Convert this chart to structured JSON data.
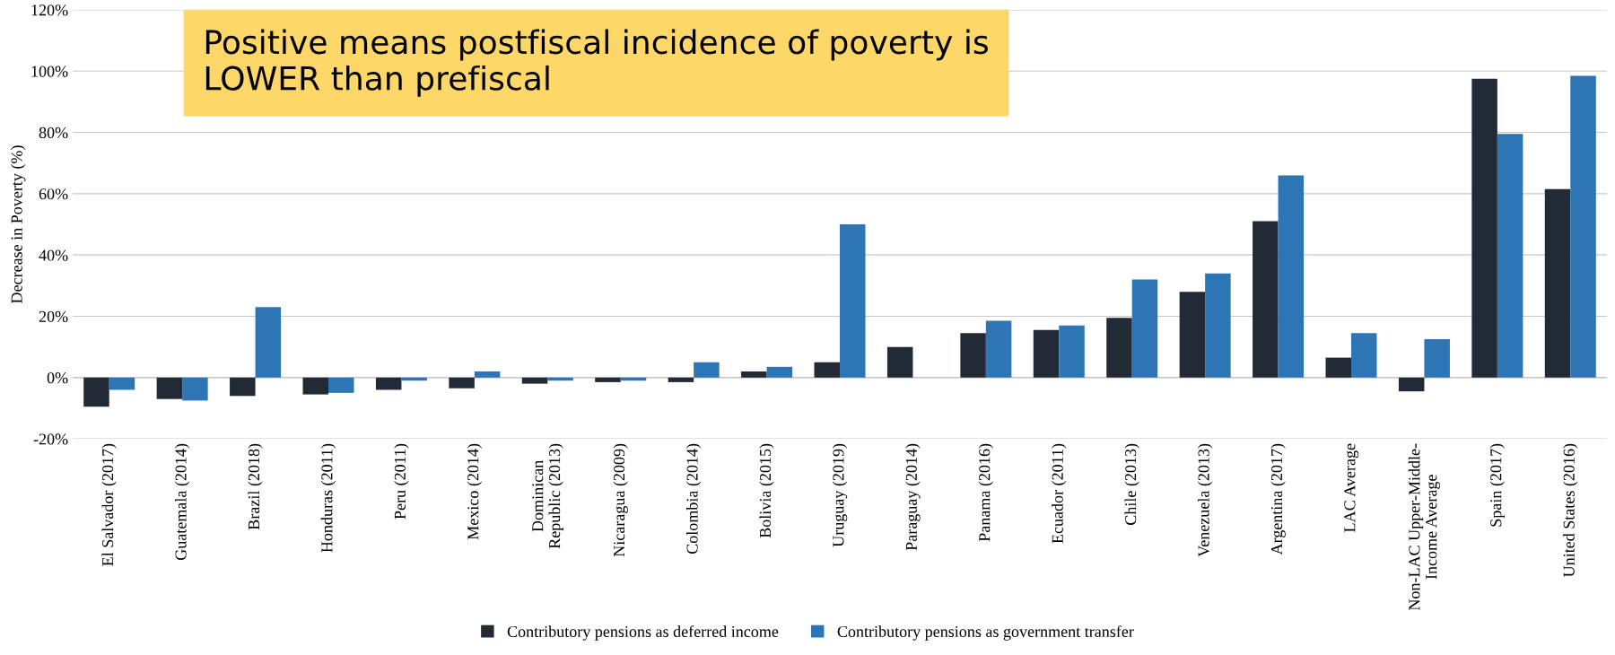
{
  "chart_data": {
    "type": "bar",
    "ylabel": "Decrease in Poverty (%)",
    "categories": [
      "El Salvador (2017)",
      "Guatemala (2014)",
      "Brazil (2018)",
      "Honduras (2011)",
      "Peru (2011)",
      "Mexico (2014)",
      "Dominican\nRepublic (2013)",
      "Nicaragua (2009)",
      "Colombia (2014)",
      "Bolivia (2015)",
      "Uruguay (2019)",
      "Paraguay (2014)",
      "Panama (2016)",
      "Ecuador (2011)",
      "Chile (2013)",
      "Venezuela (2013)",
      "Argentina (2017)",
      "LAC Average",
      "Non-LAC Upper-Middle-\nIncome Average",
      "Spain (2017)",
      "United States (2016)"
    ],
    "series": [
      {
        "name": "Contributory pensions as deferred income",
        "color": "#222a35",
        "values": [
          -9.5,
          -7,
          -6,
          -5.5,
          -4,
          -3.5,
          -2,
          -1.5,
          -1.5,
          2,
          5,
          10,
          14.5,
          15.5,
          19.5,
          28,
          51,
          6.5,
          -4.5,
          97.5,
          61.5
        ]
      },
      {
        "name": "Contributory pensions as government transfer",
        "color": "#2e75b6",
        "values": [
          -4,
          -7.5,
          23,
          -5,
          -1,
          2,
          -1,
          -1,
          5,
          3.5,
          50,
          null,
          18.5,
          17,
          32,
          34,
          66,
          14.5,
          12.5,
          79.5,
          98.5
        ]
      }
    ],
    "ylim": [
      -20,
      120
    ],
    "yticks": [
      {
        "value": -20,
        "label": "-20%"
      },
      {
        "value": 0,
        "label": "0%"
      },
      {
        "value": 20,
        "label": "20%"
      },
      {
        "value": 40,
        "label": "40%"
      },
      {
        "value": 60,
        "label": "60%"
      },
      {
        "value": 80,
        "label": "80%"
      },
      {
        "value": 100,
        "label": "100%"
      },
      {
        "value": 120,
        "label": "120%"
      }
    ],
    "grid": "y",
    "legend": "bottom",
    "annotations": [
      "Positive means postfiscal incidence of poverty is\nLOWER than prefiscal"
    ]
  }
}
